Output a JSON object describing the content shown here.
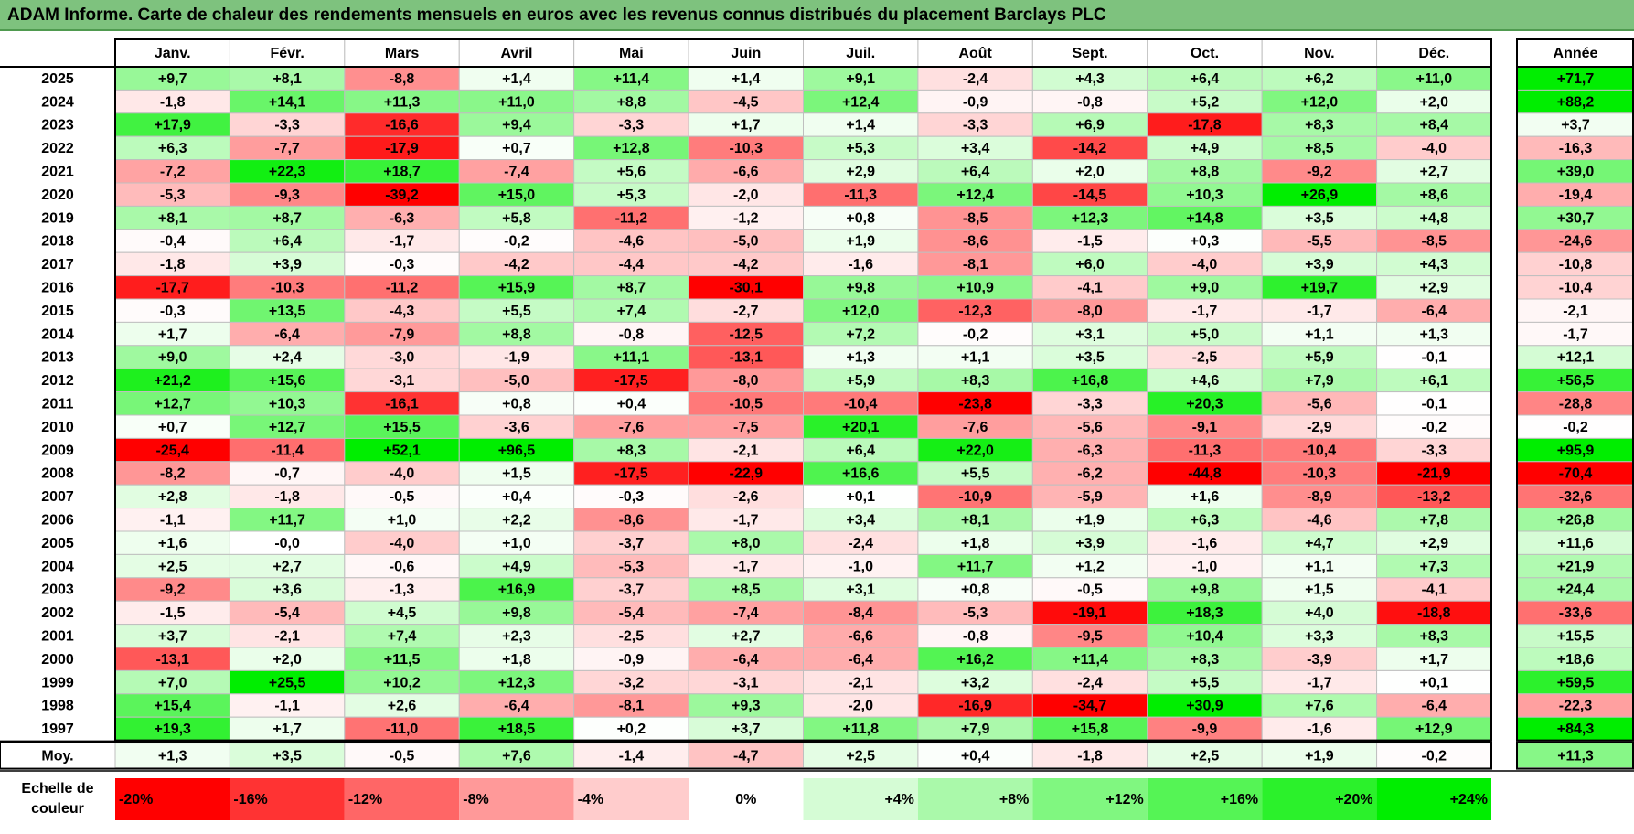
{
  "title": "ADAM Informe. Carte de chaleur des rendements mensuels en euros avec les revenus connus distribués du placement Barclays PLC",
  "chart_data": {
    "type": "heatmap",
    "months": [
      "Janv.",
      "Févr.",
      "Mars",
      "Avril",
      "Mai",
      "Juin",
      "Juil.",
      "Août",
      "Sept.",
      "Oct.",
      "Nov.",
      "Déc."
    ],
    "year_header": "Année",
    "rows": [
      {
        "year": "2025",
        "values": [
          "+9,7",
          "+8,1",
          "-8,8",
          "+1,4",
          "+11,4",
          "+1,4",
          "+9,1",
          "-2,4",
          "+4,3",
          "+6,4",
          "+6,2",
          "+11,0"
        ],
        "total": "+71,7"
      },
      {
        "year": "2024",
        "values": [
          "-1,8",
          "+14,1",
          "+11,3",
          "+11,0",
          "+8,8",
          "-4,5",
          "+12,4",
          "-0,9",
          "-0,8",
          "+5,2",
          "+12,0",
          "+2,0"
        ],
        "total": "+88,2"
      },
      {
        "year": "2023",
        "values": [
          "+17,9",
          "-3,3",
          "-16,6",
          "+9,4",
          "-3,3",
          "+1,7",
          "+1,4",
          "-3,3",
          "+6,9",
          "-17,8",
          "+8,3",
          "+8,4"
        ],
        "total": "+3,7"
      },
      {
        "year": "2022",
        "values": [
          "+6,3",
          "-7,7",
          "-17,9",
          "+0,7",
          "+12,8",
          "-10,3",
          "+5,3",
          "+3,4",
          "-14,2",
          "+4,9",
          "+8,5",
          "-4,0"
        ],
        "total": "-16,3"
      },
      {
        "year": "2021",
        "values": [
          "-7,2",
          "+22,3",
          "+18,7",
          "-7,4",
          "+5,6",
          "-6,6",
          "+2,9",
          "+6,4",
          "+2,0",
          "+8,8",
          "-9,2",
          "+2,7"
        ],
        "total": "+39,0"
      },
      {
        "year": "2020",
        "values": [
          "-5,3",
          "-9,3",
          "-39,2",
          "+15,0",
          "+5,3",
          "-2,0",
          "-11,3",
          "+12,4",
          "-14,5",
          "+10,3",
          "+26,9",
          "+8,6"
        ],
        "total": "-19,4"
      },
      {
        "year": "2019",
        "values": [
          "+8,1",
          "+8,7",
          "-6,3",
          "+5,8",
          "-11,2",
          "-1,2",
          "+0,8",
          "-8,5",
          "+12,3",
          "+14,8",
          "+3,5",
          "+4,8"
        ],
        "total": "+30,7"
      },
      {
        "year": "2018",
        "values": [
          "-0,4",
          "+6,4",
          "-1,7",
          "-0,2",
          "-4,6",
          "-5,0",
          "+1,9",
          "-8,6",
          "-1,5",
          "+0,3",
          "-5,5",
          "-8,5"
        ],
        "total": "-24,6"
      },
      {
        "year": "2017",
        "values": [
          "-1,8",
          "+3,9",
          "-0,3",
          "-4,2",
          "-4,4",
          "-4,2",
          "-1,6",
          "-8,1",
          "+6,0",
          "-4,0",
          "+3,9",
          "+4,3"
        ],
        "total": "-10,8"
      },
      {
        "year": "2016",
        "values": [
          "-17,7",
          "-10,3",
          "-11,2",
          "+15,9",
          "+8,7",
          "-30,1",
          "+9,8",
          "+10,9",
          "-4,1",
          "+9,0",
          "+19,7",
          "+2,9"
        ],
        "total": "-10,4"
      },
      {
        "year": "2015",
        "values": [
          "-0,3",
          "+13,5",
          "-4,3",
          "+5,5",
          "+7,4",
          "-2,7",
          "+12,0",
          "-12,3",
          "-8,0",
          "-1,7",
          "-1,7",
          "-6,4"
        ],
        "total": "-2,1"
      },
      {
        "year": "2014",
        "values": [
          "+1,7",
          "-6,4",
          "-7,9",
          "+8,8",
          "-0,8",
          "-12,5",
          "+7,2",
          "-0,2",
          "+3,1",
          "+5,0",
          "+1,1",
          "+1,3"
        ],
        "total": "-1,7"
      },
      {
        "year": "2013",
        "values": [
          "+9,0",
          "+2,4",
          "-3,0",
          "-1,9",
          "+11,1",
          "-13,1",
          "+1,3",
          "+1,1",
          "+3,5",
          "-2,5",
          "+5,9",
          "-0,1"
        ],
        "total": "+12,1"
      },
      {
        "year": "2012",
        "values": [
          "+21,2",
          "+15,6",
          "-3,1",
          "-5,0",
          "-17,5",
          "-8,0",
          "+5,9",
          "+8,3",
          "+16,8",
          "+4,6",
          "+7,9",
          "+6,1"
        ],
        "total": "+56,5"
      },
      {
        "year": "2011",
        "values": [
          "+12,7",
          "+10,3",
          "-16,1",
          "+0,8",
          "+0,4",
          "-10,5",
          "-10,4",
          "-23,8",
          "-3,3",
          "+20,3",
          "-5,6",
          "-0,1"
        ],
        "total": "-28,8"
      },
      {
        "year": "2010",
        "values": [
          "+0,7",
          "+12,7",
          "+15,5",
          "-3,6",
          "-7,6",
          "-7,5",
          "+20,1",
          "-7,6",
          "-5,6",
          "-9,1",
          "-2,9",
          "-0,2"
        ],
        "total": "-0,2"
      },
      {
        "year": "2009",
        "values": [
          "-25,4",
          "-11,4",
          "+52,1",
          "+96,5",
          "+8,3",
          "-2,1",
          "+6,4",
          "+22,0",
          "-6,3",
          "-11,3",
          "-10,4",
          "-3,3"
        ],
        "total": "+95,9"
      },
      {
        "year": "2008",
        "values": [
          "-8,2",
          "-0,7",
          "-4,0",
          "+1,5",
          "-17,5",
          "-22,9",
          "+16,6",
          "+5,5",
          "-6,2",
          "-44,8",
          "-10,3",
          "-21,9"
        ],
        "total": "-70,4"
      },
      {
        "year": "2007",
        "values": [
          "+2,8",
          "-1,8",
          "-0,5",
          "+0,4",
          "-0,3",
          "-2,6",
          "+0,1",
          "-10,9",
          "-5,9",
          "+1,6",
          "-8,9",
          "-13,2"
        ],
        "total": "-32,6"
      },
      {
        "year": "2006",
        "values": [
          "-1,1",
          "+11,7",
          "+1,0",
          "+2,2",
          "-8,6",
          "-1,7",
          "+3,4",
          "+8,1",
          "+1,9",
          "+6,3",
          "-4,6",
          "+7,8"
        ],
        "total": "+26,8"
      },
      {
        "year": "2005",
        "values": [
          "+1,6",
          "-0,0",
          "-4,0",
          "+1,0",
          "-3,7",
          "+8,0",
          "-2,4",
          "+1,8",
          "+3,9",
          "-1,6",
          "+4,7",
          "+2,9"
        ],
        "total": "+11,6"
      },
      {
        "year": "2004",
        "values": [
          "+2,5",
          "+2,7",
          "-0,6",
          "+4,9",
          "-5,3",
          "-1,7",
          "-1,0",
          "+11,7",
          "+1,2",
          "-1,0",
          "+1,1",
          "+7,3"
        ],
        "total": "+21,9"
      },
      {
        "year": "2003",
        "values": [
          "-9,2",
          "+3,6",
          "-1,3",
          "+16,9",
          "-3,7",
          "+8,5",
          "+3,1",
          "+0,8",
          "-0,5",
          "+9,8",
          "+1,5",
          "-4,1"
        ],
        "total": "+24,4"
      },
      {
        "year": "2002",
        "values": [
          "-1,5",
          "-5,4",
          "+4,5",
          "+9,8",
          "-5,4",
          "-7,4",
          "-8,4",
          "-5,3",
          "-19,1",
          "+18,3",
          "+4,0",
          "-18,8"
        ],
        "total": "-33,6"
      },
      {
        "year": "2001",
        "values": [
          "+3,7",
          "-2,1",
          "+7,4",
          "+2,3",
          "-2,5",
          "+2,7",
          "-6,6",
          "-0,8",
          "-9,5",
          "+10,4",
          "+3,3",
          "+8,3"
        ],
        "total": "+15,5"
      },
      {
        "year": "2000",
        "values": [
          "-13,1",
          "+2,0",
          "+11,5",
          "+1,8",
          "-0,9",
          "-6,4",
          "-6,4",
          "+16,2",
          "+11,4",
          "+8,3",
          "-3,9",
          "+1,7"
        ],
        "total": "+18,6"
      },
      {
        "year": "1999",
        "values": [
          "+7,0",
          "+25,5",
          "+10,2",
          "+12,3",
          "-3,2",
          "-3,1",
          "-2,1",
          "+3,2",
          "-2,4",
          "+5,5",
          "-1,7",
          "+0,1"
        ],
        "total": "+59,5"
      },
      {
        "year": "1998",
        "values": [
          "+15,4",
          "-1,1",
          "+2,6",
          "-6,4",
          "-8,1",
          "+9,3",
          "-2,0",
          "-16,9",
          "-34,7",
          "+30,9",
          "+7,6",
          "-6,4"
        ],
        "total": "-22,3"
      },
      {
        "year": "1997",
        "values": [
          "+19,3",
          "+1,7",
          "-11,0",
          "+18,5",
          "+0,2",
          "+3,7",
          "+11,8",
          "+7,9",
          "+15,8",
          "-9,9",
          "-1,6",
          "+12,9"
        ],
        "total": "+84,3"
      }
    ],
    "average": {
      "label": "Moy.",
      "values": [
        "+1,3",
        "+3,5",
        "-0,5",
        "+7,6",
        "-1,4",
        "-4,7",
        "+2,5",
        "+0,4",
        "-1,8",
        "+2,5",
        "+1,9",
        "-0,2"
      ],
      "total": "+11,3"
    },
    "legend": {
      "label_line1": "Echelle de",
      "label_line2": "couleur",
      "steps": [
        "-20%",
        "-16%",
        "-12%",
        "-8%",
        "-4%",
        "0%",
        "+4%",
        "+8%",
        "+12%",
        "+16%",
        "+20%",
        "+24%"
      ]
    },
    "colors": {
      "title_bar": "#7ec27e",
      "negative_max": "#ff0000",
      "neutral": "#ffffff",
      "positive_max": "#00ee00",
      "grid": "#bfbfbf",
      "border": "#000000"
    }
  }
}
